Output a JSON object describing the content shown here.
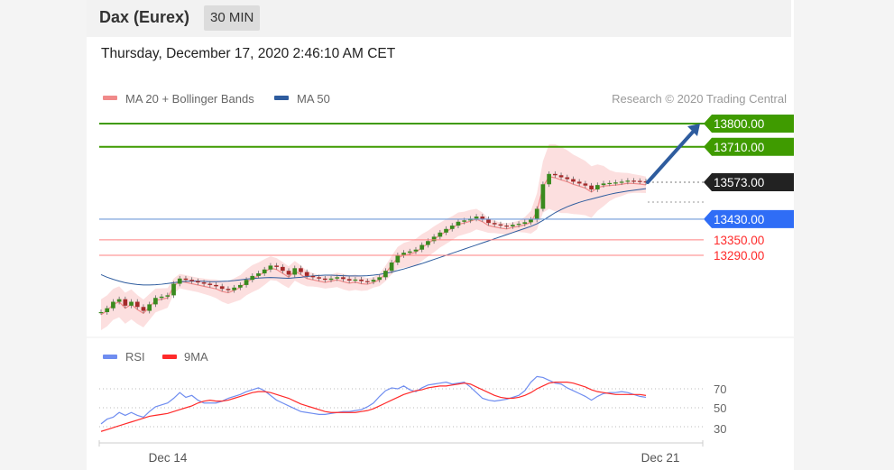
{
  "header": {
    "instrument": "Dax (Eurex)",
    "timeframe": "30 MIN"
  },
  "datetime": "Thursday, December 17, 2020 2:46:10 AM CET",
  "legend": {
    "items": [
      {
        "label": "MA 20 + Bollinger Bands",
        "color": "#f08a8a"
      },
      {
        "label": "MA 50",
        "color": "#2e5c9e"
      }
    ],
    "credit": "Research © 2020 Trading Central"
  },
  "levels": [
    {
      "label": "13800.00",
      "type": "target",
      "color": "#3f9b00"
    },
    {
      "label": "13710.00",
      "type": "target",
      "color": "#3f9b00"
    },
    {
      "label": "13573.00",
      "type": "current",
      "color": "#222222"
    },
    {
      "label": "13430.00",
      "type": "pivot",
      "color": "#2f6df6"
    },
    {
      "label": "13350.00",
      "type": "support",
      "color": "#ff2a2a"
    },
    {
      "label": "13290.00",
      "type": "support",
      "color": "#ff2a2a"
    }
  ],
  "rsi_panel": {
    "legend": [
      {
        "label": "RSI",
        "color": "#6f8df0"
      },
      {
        "label": "9MA",
        "color": "#ff2a2a"
      }
    ],
    "levels": [
      "70",
      "50",
      "30"
    ]
  },
  "x_axis": {
    "labels": [
      "Dec 14",
      "Dec 21"
    ]
  },
  "chart_data": {
    "type": "line",
    "title": "",
    "price_ylim": [
      13060,
      13860
    ],
    "levels": [
      13800,
      13710,
      13573,
      13430,
      13350,
      13290
    ],
    "price": [
      13070,
      13085,
      13110,
      13120,
      13095,
      13110,
      13090,
      13075,
      13100,
      13125,
      13130,
      13135,
      13180,
      13200,
      13195,
      13190,
      13185,
      13180,
      13175,
      13170,
      13160,
      13155,
      13165,
      13175,
      13195,
      13210,
      13220,
      13235,
      13250,
      13245,
      13230,
      13215,
      13240,
      13225,
      13210,
      13205,
      13200,
      13195,
      13200,
      13205,
      13198,
      13192,
      13196,
      13190,
      13188,
      13195,
      13205,
      13230,
      13262,
      13290,
      13300,
      13305,
      13312,
      13330,
      13345,
      13362,
      13378,
      13392,
      13405,
      13420,
      13425,
      13432,
      13440,
      13430,
      13415,
      13410,
      13405,
      13402,
      13408,
      13412,
      13418,
      13428,
      13470,
      13565,
      13605,
      13600,
      13592,
      13585,
      13575,
      13568,
      13560,
      13545,
      13562,
      13568,
      13570,
      13572,
      13575,
      13579,
      13578,
      13576,
      13573
    ],
    "ma50": [
      13215,
      13205,
      13197,
      13190,
      13184,
      13180,
      13177,
      13175,
      13175,
      13176,
      13178,
      13181,
      13184,
      13187,
      13189,
      13190,
      13190,
      13189,
      13188,
      13188,
      13189,
      13190,
      13192,
      13195,
      13198,
      13200,
      13202,
      13203,
      13204,
      13203,
      13202,
      13201,
      13203,
      13205,
      13208,
      13210,
      13212,
      13213,
      13213,
      13212,
      13211,
      13210,
      13210,
      13210,
      13211,
      13213,
      13216,
      13220,
      13225,
      13231,
      13237,
      13244,
      13251,
      13258,
      13266,
      13274,
      13282,
      13290,
      13298,
      13306,
      13314,
      13322,
      13330,
      13338,
      13346,
      13354,
      13362,
      13370,
      13378,
      13386,
      13394,
      13402,
      13412,
      13425,
      13440,
      13455,
      13467,
      13478,
      13487,
      13495,
      13502,
      13508,
      13514,
      13520,
      13526,
      13531,
      13535,
      13539,
      13542,
      13545,
      13548
    ],
    "rsi_ylim": [
      10,
      90
    ],
    "rsi": [
      33,
      38,
      40,
      45,
      42,
      45,
      42,
      40,
      46,
      51,
      53,
      55,
      60,
      66,
      61,
      63,
      58,
      55,
      55,
      55,
      57,
      60,
      62,
      64,
      67,
      69,
      71,
      68,
      63,
      58,
      55,
      52,
      49,
      46,
      45,
      44,
      43,
      43,
      44,
      45,
      46,
      46,
      47,
      48,
      51,
      55,
      62,
      68,
      71,
      70,
      73,
      69,
      67,
      71,
      74,
      75,
      76,
      77,
      75,
      76,
      77,
      72,
      66,
      60,
      58,
      57,
      58,
      59,
      61,
      63,
      68,
      77,
      83,
      82,
      79,
      76,
      75,
      71,
      68,
      65,
      62,
      58,
      62,
      65,
      66,
      66,
      67,
      66,
      64,
      62,
      61
    ],
    "rsi_ma": [
      25,
      27,
      29,
      31,
      33,
      35,
      37,
      39,
      41,
      42,
      43,
      44,
      46,
      48,
      50,
      52,
      55,
      57,
      58,
      57,
      57,
      58,
      60,
      62,
      64,
      66,
      67,
      67,
      66,
      64,
      62,
      60,
      57,
      54,
      52,
      50,
      48,
      46,
      45,
      45,
      45,
      45,
      45,
      46,
      47,
      49,
      52,
      55,
      58,
      61,
      64,
      66,
      68,
      69,
      71,
      72,
      73,
      73,
      74,
      75,
      76,
      75,
      72,
      69,
      66,
      63,
      61,
      60,
      60,
      61,
      63,
      66,
      70,
      73,
      76,
      77,
      77,
      77,
      76,
      74,
      72,
      69,
      67,
      66,
      65,
      64,
      64,
      64,
      64,
      64,
      63
    ],
    "bollinger_halfwidth": [
      60,
      60,
      60,
      60,
      60,
      58,
      56,
      54,
      50,
      46,
      42,
      38,
      30,
      28,
      28,
      28,
      28,
      30,
      32,
      36,
      40,
      44,
      46,
      48,
      50,
      52,
      52,
      50,
      46,
      44,
      44,
      42,
      38,
      36,
      30,
      26,
      24,
      24,
      26,
      28,
      30,
      30,
      30,
      28,
      24,
      20,
      24,
      30,
      36,
      42,
      48,
      50,
      52,
      52,
      50,
      50,
      48,
      48,
      46,
      46,
      44,
      44,
      40,
      36,
      28,
      24,
      22,
      22,
      20,
      22,
      30,
      44,
      70,
      100,
      125,
      130,
      128,
      122,
      115,
      110,
      105,
      100,
      90,
      78,
      60,
      50,
      45,
      40,
      36,
      34,
      32
    ],
    "projection": [
      13573,
      13800
    ],
    "x_ticks": [
      "Dec 14",
      "Dec 21"
    ]
  }
}
